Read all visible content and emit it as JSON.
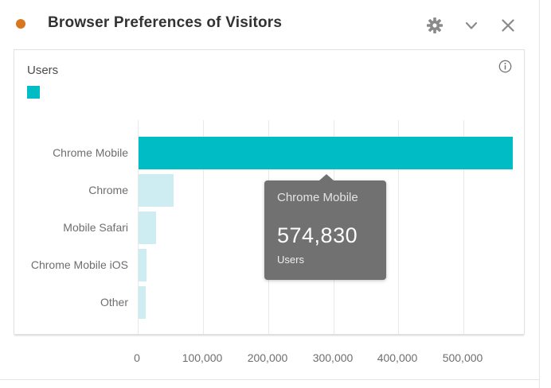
{
  "header": {
    "title": "Browser Preferences of Visitors",
    "bullet_color": "#D8771E"
  },
  "panel": {
    "legend_label": "Users"
  },
  "tooltip": {
    "category": "Chrome Mobile",
    "value": "574,830",
    "metric": "Users",
    "background_color": "#717171"
  },
  "colors": {
    "bar_active": "#00BCC4",
    "bar_inactive": "#CDEDF2",
    "icon_gray": "#8A8A8A",
    "text_dark": "#323232",
    "text_muted": "#6E6E6E"
  },
  "chart_data": {
    "type": "bar",
    "orientation": "horizontal",
    "title": "Browser Preferences of Visitors",
    "ylabel": "Users",
    "xlabel": "",
    "grid": "vertical",
    "legend": {
      "label": "Users",
      "color": "#00BCC4",
      "position": "top-left"
    },
    "categories": [
      "Chrome Mobile",
      "Chrome",
      "Mobile Safari",
      "Chrome Mobile iOS",
      "Other"
    ],
    "values": [
      574830,
      54000,
      27000,
      12000,
      11000
    ],
    "highlighted_index": 0,
    "highlighted_value_label": "574,830",
    "bar_color_active": "#00BCC4",
    "bar_color_inactive": "#CDEDF2",
    "xlim": [
      0,
      595000
    ],
    "x_ticks": [
      0,
      100000,
      200000,
      300000,
      400000,
      500000
    ],
    "x_tick_labels": [
      "0",
      "100,000",
      "200,000",
      "300,000",
      "400,000",
      "500,000"
    ]
  }
}
